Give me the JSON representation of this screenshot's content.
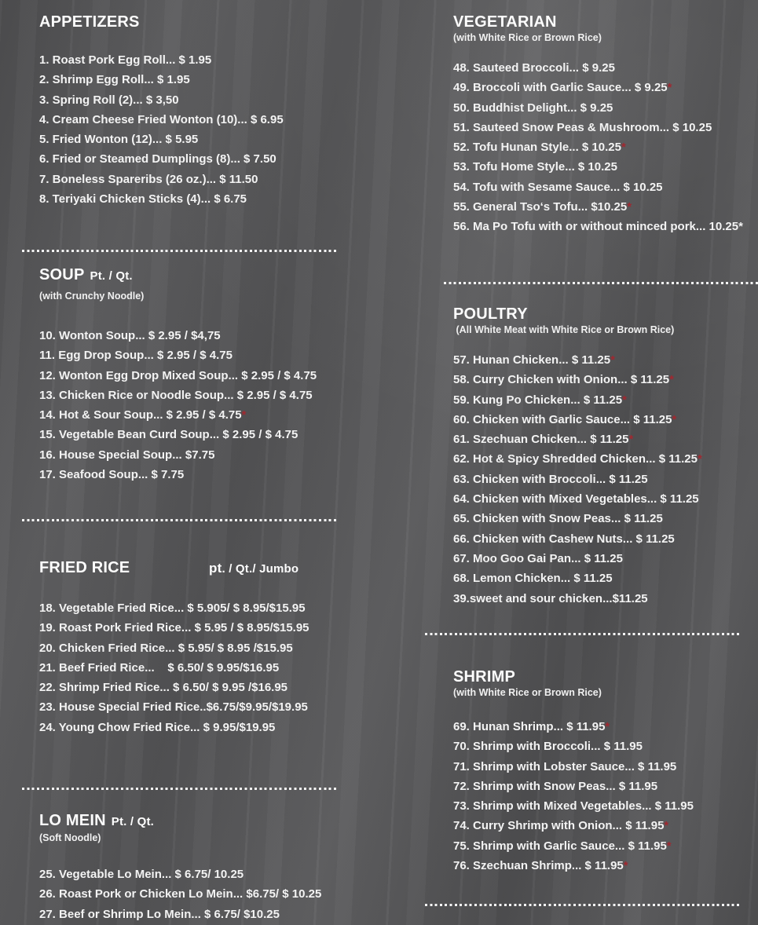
{
  "colors": {
    "background": "#58585a",
    "text": "#f3f3f3",
    "heading": "#fdfdfd",
    "spicy_asterisk": "#a02830",
    "separator": "#f5f5f5"
  },
  "icons": {
    "spicy_asterisk": "*"
  },
  "sections": [
    {
      "title": "APPETIZERS",
      "items": [
        {
          "text": "1. Roast Pork Egg Roll... $ 1.95"
        },
        {
          "text": "2. Shrimp Egg Roll... $ 1.95"
        },
        {
          "text": "3. Spring Roll (2)... $ 3,50"
        },
        {
          "text": "4. Cream Cheese Fried Wonton (10)... $ 6.95"
        },
        {
          "text": "5. Fried Wonton (12)... $ 5.95"
        },
        {
          "text": "6. Fried or Steamed Dumplings (8)... $ 7.50"
        },
        {
          "text": "7. Boneless Spareribs (26 oz.)... $ 11.50"
        },
        {
          "text": "8. Teriyaki Chicken Sticks (4)... $ 6.75"
        }
      ]
    },
    {
      "title": "SOUP",
      "title_suffix": "Pt. / Qt.",
      "subtitle": "(with Crunchy Noodle)",
      "items": [
        {
          "text": "10. Wonton Soup... $ 2.95 / $4,75"
        },
        {
          "text": "11. Egg Drop Soup... $ 2.95 / $ 4.75"
        },
        {
          "text": "12. Wonton Egg Drop Mixed Soup... $ 2.95 / $ 4.75"
        },
        {
          "text": "13. Chicken Rice or Noodle Soup... $ 2.95 / $ 4.75"
        },
        {
          "text": "14. Hot & Sour Soup... $ 2.95 / $ 4.75",
          "spicy": true
        },
        {
          "text": "15. Vegetable Bean Curd Soup... $ 2.95 / $ 4.75"
        },
        {
          "text": "16. House Special Soup... $7.75"
        },
        {
          "text": "17. Seafood Soup... $ 7.75"
        }
      ]
    },
    {
      "title": "FRIED RICE",
      "size_label_big": "pt",
      "size_label_small": ". / Qt./ Jumbo",
      "items": [
        {
          "text": "18. Vegetable Fried Rice... $ 5.905/ $ 8.95/$15.95"
        },
        {
          "text": "19. Roast Pork Fried Rice... $ 5.95 / $ 8.95/$15.95"
        },
        {
          "text": "20. Chicken Fried Rice... $ 5.95/ $ 8.95 /$15.95"
        },
        {
          "text": "21. Beef Fried Rice...    $ 6.50/ $ 9.95/$16.95"
        },
        {
          "text": "22. Shrimp Fried Rice... $ 6.50/ $ 9.95 /$16.95"
        },
        {
          "text": "23. House Special Fried Rice..$6.75/$9.95/$19.95"
        },
        {
          "text": "24. Young Chow Fried Rice... $ 9.95/$19.95"
        }
      ]
    },
    {
      "title": "LO MEIN",
      "title_suffix": "Pt. / Qt.",
      "subtitle": "(Soft Noodle)",
      "items": [
        {
          "text": "25. Vegetable Lo Mein... $ 6.75/ 10.25"
        },
        {
          "text": "26. Roast Pork or Chicken Lo Mein... $6.75/ $ 10.25"
        },
        {
          "text": "27. Beef or Shrimp Lo Mein... $ 6.75/ $10.25"
        }
      ]
    },
    {
      "title": "VEGETARIAN",
      "subtitle": "(with White Rice or Brown Rice)",
      "items": [
        {
          "text": "48. Sauteed Broccoli... $ 9.25"
        },
        {
          "text": "49. Broccoli with Garlic Sauce... $ 9.25",
          "spicy": true
        },
        {
          "text": "50. Buddhist Delight... $ 9.25"
        },
        {
          "text": "51. Sauteed Snow Peas & Mushroom... $ 10.25"
        },
        {
          "text": "52. Tofu Hunan Style... $ 10.25",
          "spicy": true
        },
        {
          "text": "53. Tofu Home Style... $ 10.25"
        },
        {
          "text": "54. Tofu with Sesame Sauce... $ 10.25"
        },
        {
          "text": "55. General Tso‘s Tofu... $10.25",
          "spicy": true
        },
        {
          "text": "56. Ma Po Tofu with or without minced pork... 10.25*"
        }
      ]
    },
    {
      "title": "POULTRY",
      "subtitle": " (All White Meat with White Rice or Brown Rice)",
      "items": [
        {
          "text": "57. Hunan Chicken... $ 11.25",
          "spicy": true
        },
        {
          "text": "58. Curry Chicken with Onion... $ 11.25",
          "spicy": true
        },
        {
          "text": "59. Kung Po Chicken... $ 11.25",
          "spicy": true
        },
        {
          "text": "60. Chicken with Garlic Sauce... $ 11.25",
          "spicy": true
        },
        {
          "text": "61. Szechuan Chicken... $ 11.25",
          "spicy": true
        },
        {
          "text": "62. Hot & Spicy Shredded Chicken... $ 11.25",
          "spicy": true
        },
        {
          "text": "63. Chicken with Broccoli... $ 11.25"
        },
        {
          "text": "64. Chicken with Mixed Vegetables... $ 11.25"
        },
        {
          "text": "65. Chicken with Snow Peas... $ 11.25"
        },
        {
          "text": "66. Chicken with Cashew Nuts... $ 11.25"
        },
        {
          "text": "67. Moo Goo Gai Pan... $ 11.25"
        },
        {
          "text": "68. Lemon Chicken... $ 11.25"
        },
        {
          "text": "39.sweet and sour chicken...$11.25"
        }
      ]
    },
    {
      "title": "SHRIMP",
      "subtitle": "(with White Rice or Brown Rice)",
      "items": [
        {
          "text": "69. Hunan Shrimp... $ 11.95",
          "spicy": true
        },
        {
          "text": "70. Shrimp with Broccoli... $ 11.95"
        },
        {
          "text": "71. Shrimp with Lobster Sauce... $ 11.95"
        },
        {
          "text": "72. Shrimp with Snow Peas... $ 11.95"
        },
        {
          "text": "73. Shrimp with Mixed Vegetables... $ 11.95"
        },
        {
          "text": "74. Curry Shrimp with Onion... $ 11.95",
          "spicy": true
        },
        {
          "text": "75. Shrimp with Garlic Sauce... $ 11.95",
          "spicy": true
        },
        {
          "text": "76. Szechuan Shrimp... $ 11.95",
          "spicy": true
        }
      ]
    }
  ]
}
